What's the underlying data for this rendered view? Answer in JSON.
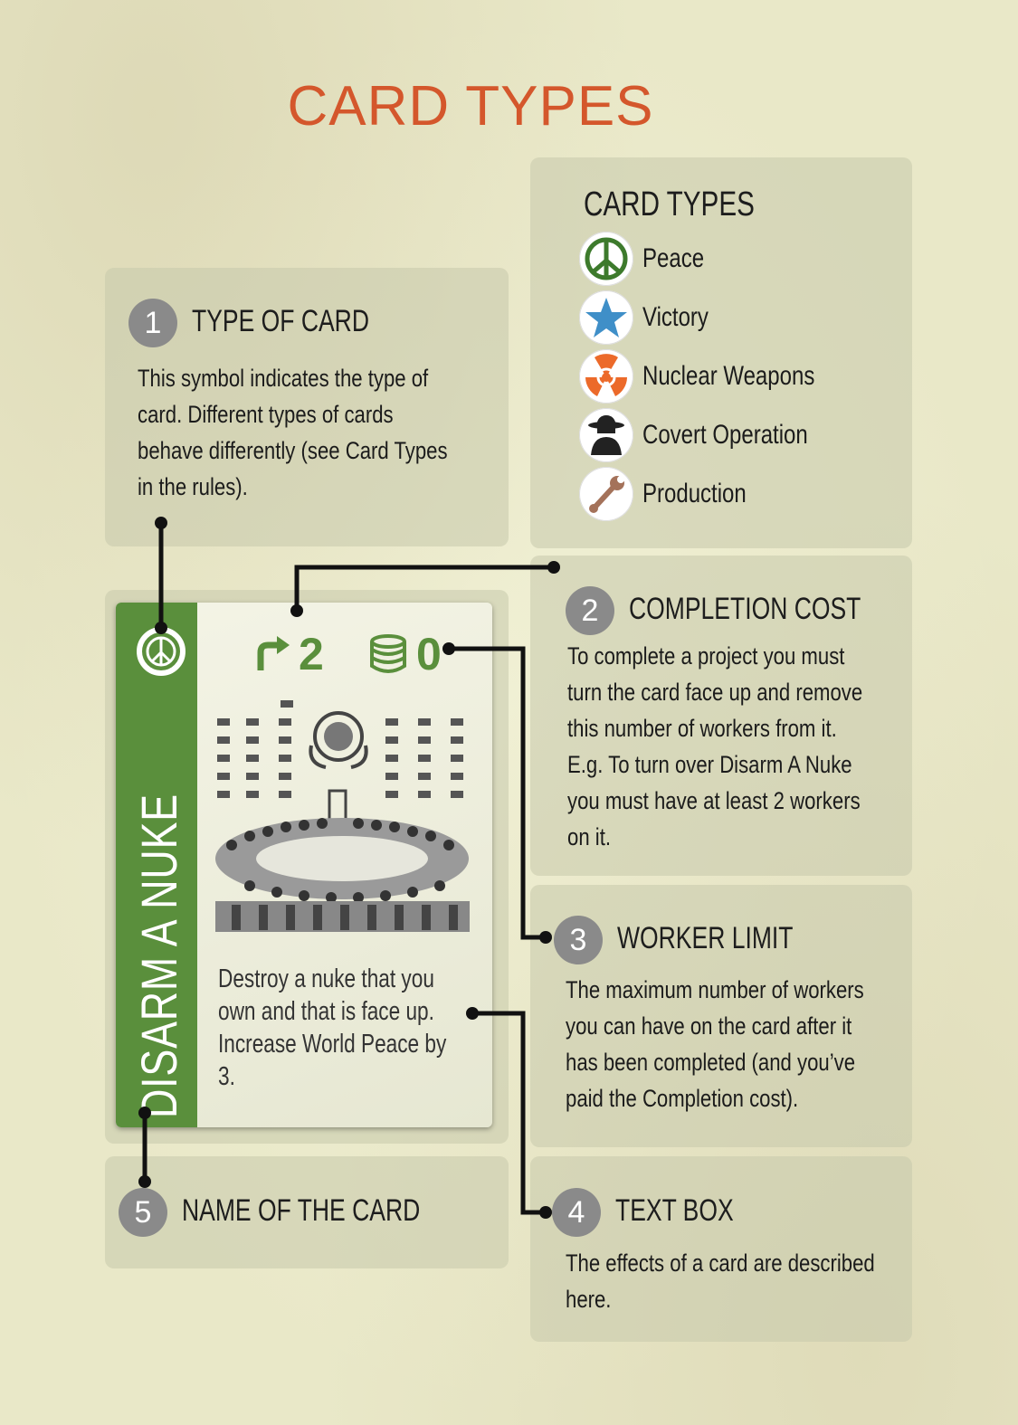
{
  "title": "CARD TYPES",
  "legend": {
    "heading": "CARD TYPES",
    "items": [
      {
        "label": "Peace",
        "icon": "peace-icon",
        "color": "#3d7a2c"
      },
      {
        "label": "Victory",
        "icon": "star-icon",
        "color": "#3f8fc8"
      },
      {
        "label": "Nuclear Weapons",
        "icon": "radiation-icon",
        "color": "#ec6a2a"
      },
      {
        "label": "Covert Operation",
        "icon": "spy-icon",
        "color": "#222222"
      },
      {
        "label": "Production",
        "icon": "wrench-icon",
        "color": "#a4725a"
      }
    ]
  },
  "sections": {
    "type_of_card": {
      "number": "1",
      "heading": "TYPE OF CARD",
      "text": "This symbol indicates the type of\ncard. Different types of cards\nbehave differently (see Card Types\nin the rules)."
    },
    "completion_cost": {
      "number": "2",
      "heading": "COMPLETION COST",
      "text": "To complete a project you must\nturn the card face up and remove\nthis number of workers from it.\nE.g. To turn over Disarm A Nuke\nyou must have at least 2 workers\non it."
    },
    "worker_limit": {
      "number": "3",
      "heading": "WORKER LIMIT",
      "text": "The maximum number of workers\nyou can have on the card after it\nhas been completed (and you’ve\npaid the Completion cost)."
    },
    "text_box": {
      "number": "4",
      "heading": "TEXT BOX",
      "text": "The effects of a card are described\nhere."
    },
    "name_of_card": {
      "number": "5",
      "heading": "NAME OF THE CARD"
    }
  },
  "card": {
    "name": "DISARM A NUKE",
    "completion_cost": "2",
    "worker_limit": "0",
    "text": "Destroy a nuke that you own and that is face up. Increase World Peace by 3.",
    "accent_color": "#5a8f3c"
  }
}
